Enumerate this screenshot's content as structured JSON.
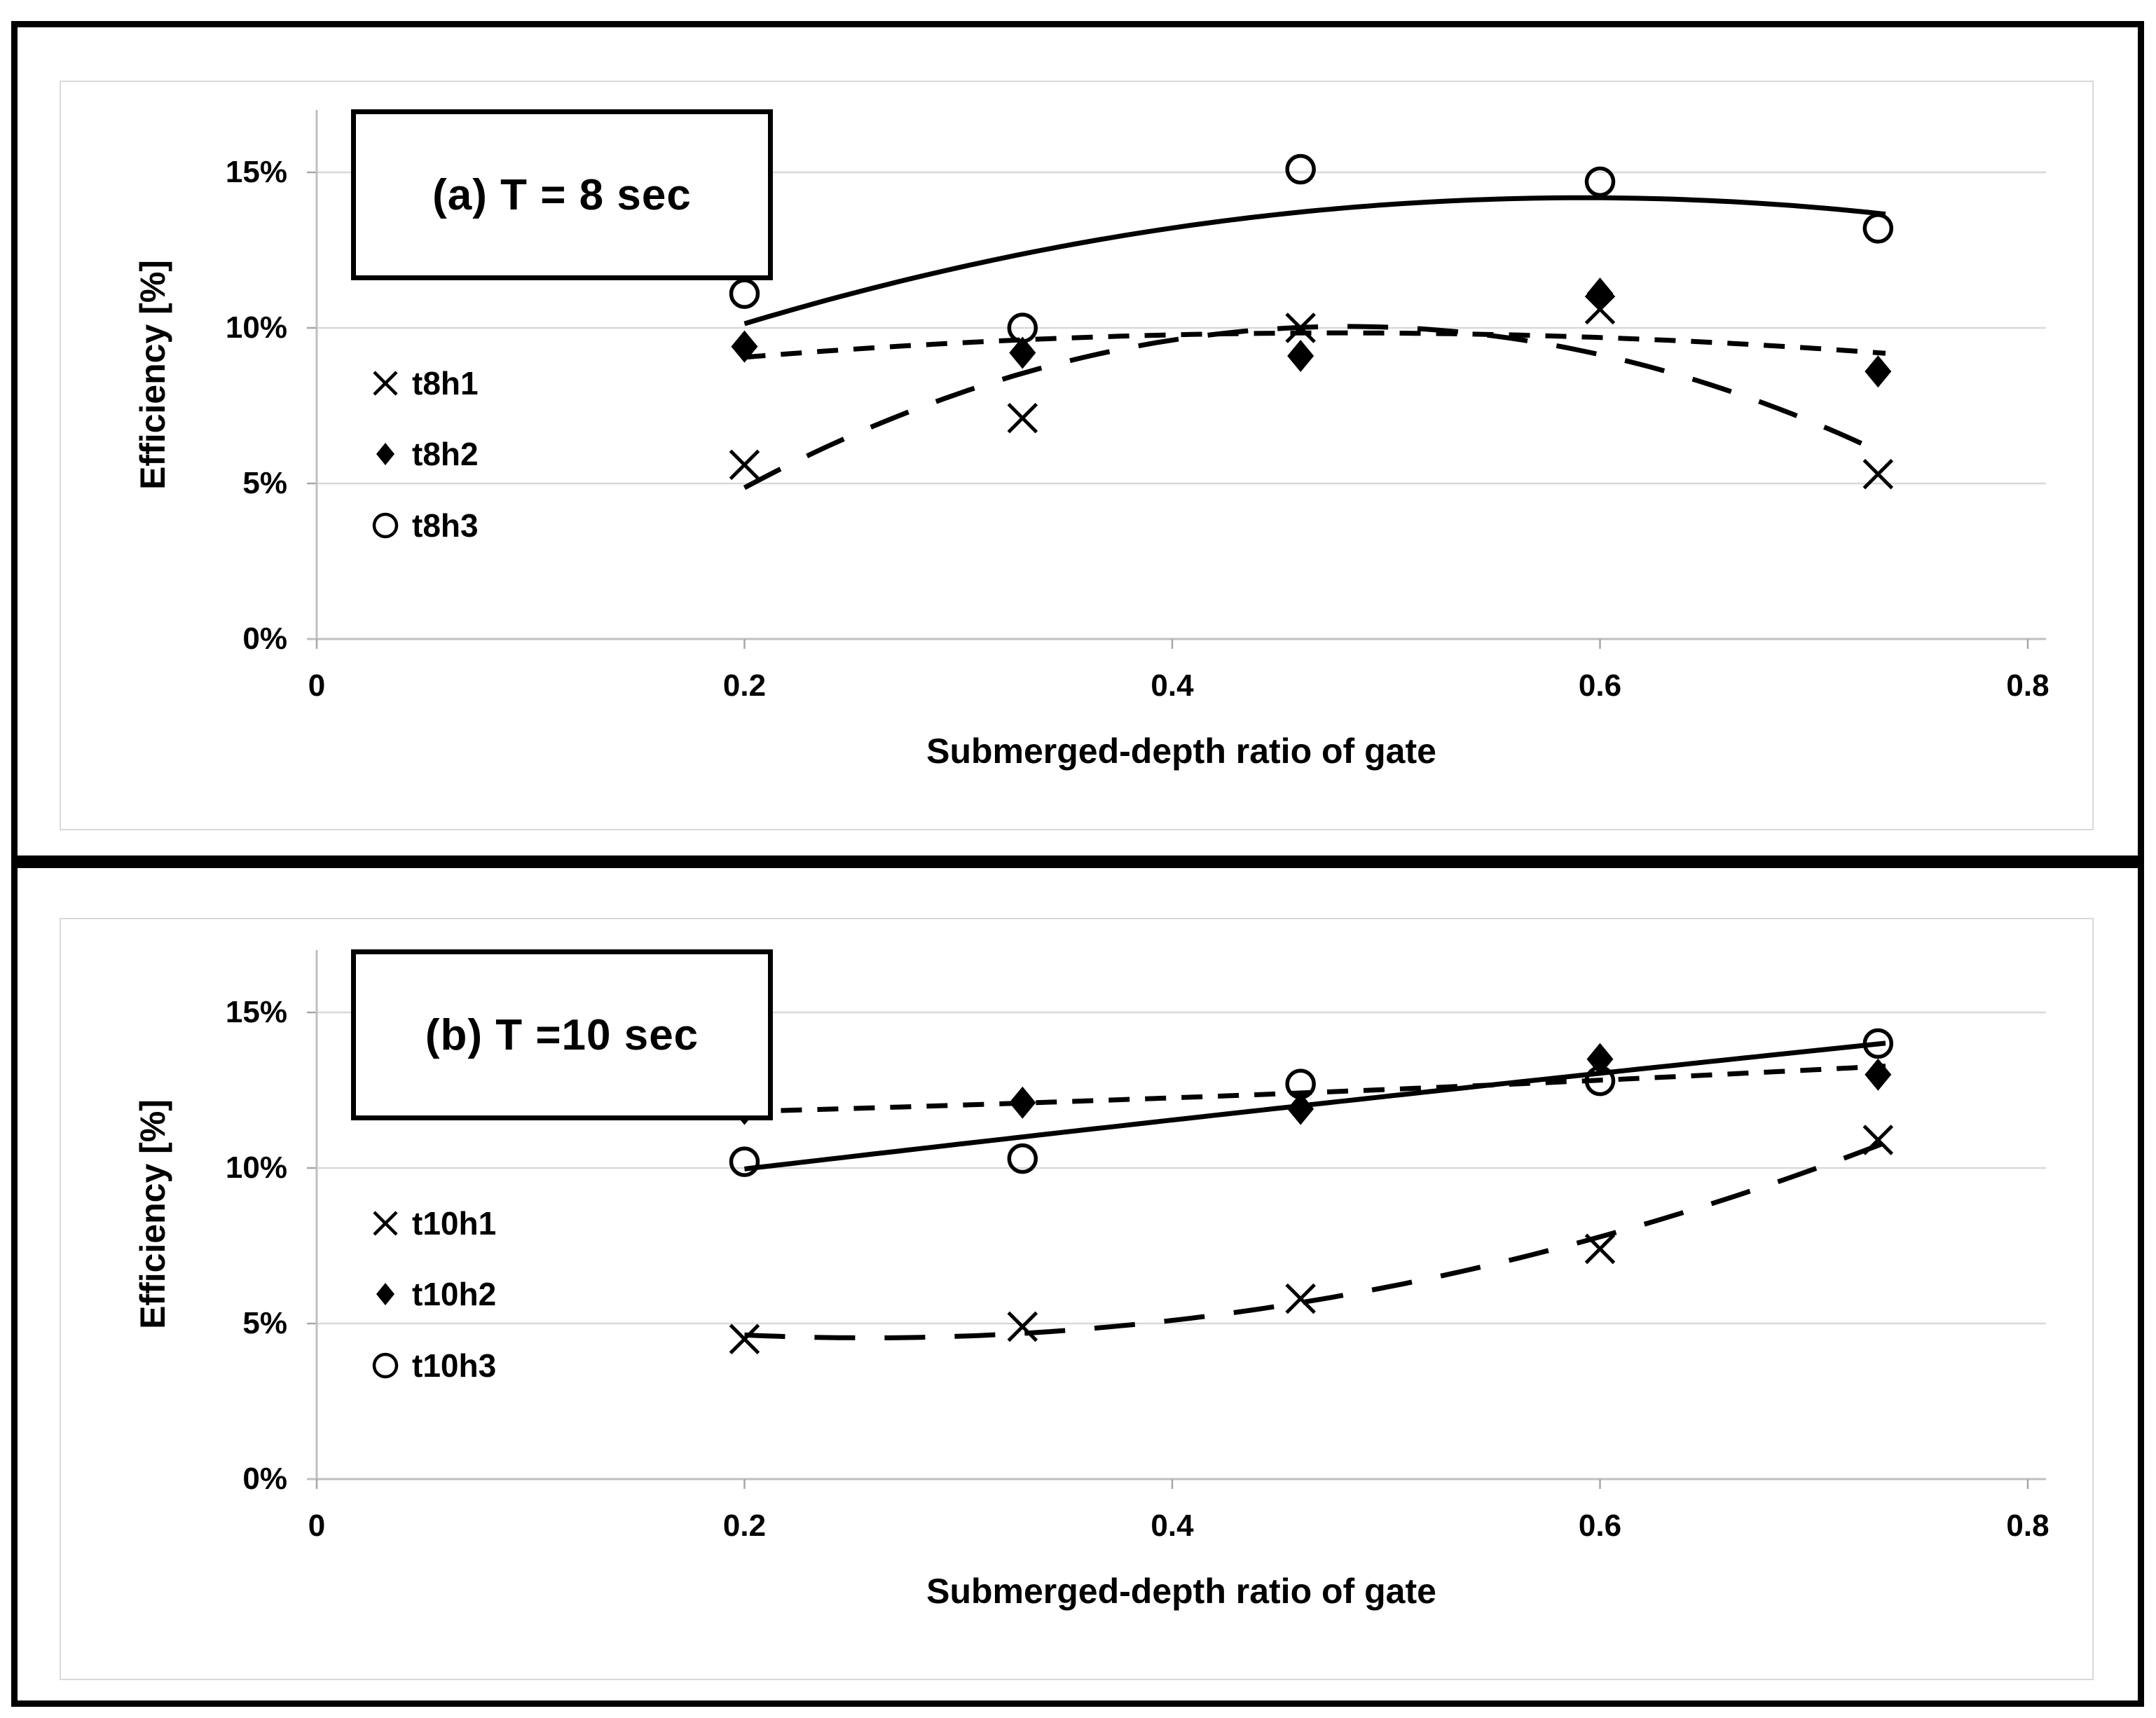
{
  "colors": {
    "ink": "#000000",
    "gridline": "#d9d9d9",
    "axis_line": "#bfbfbf",
    "tick_mark": "#a6a6a6",
    "chart_border": "#d9d9d9",
    "panel_border": "#000000",
    "background": "#ffffff"
  },
  "chart_data": [
    {
      "type": "scatter",
      "title": "(a)  T = 8 sec",
      "xlabel": "Submerged-depth ratio of gate",
      "ylabel": "Efficiency [%]",
      "x_ticks": [
        "0",
        "0.2",
        "0.4",
        "0.6",
        "0.8"
      ],
      "x_tick_values": [
        0,
        0.2,
        0.4,
        0.6,
        0.8
      ],
      "y_ticks": [
        "0%",
        "5%",
        "10%",
        "15%"
      ],
      "y_tick_values": [
        0,
        5,
        10,
        15
      ],
      "xlim": [
        0,
        0.8
      ],
      "ylim": [
        0,
        17
      ],
      "grid": true,
      "legend_position": "inside-left",
      "trend": {
        "type": "polynomial",
        "order": 2,
        "range": [
          0.2,
          0.735
        ]
      },
      "x": [
        0.2,
        0.33,
        0.46,
        0.6,
        0.73
      ],
      "series": [
        {
          "name": "t8h1",
          "marker": "x",
          "line": "long-dash",
          "values": [
            5.6,
            7.1,
            10.0,
            10.6,
            5.3
          ]
        },
        {
          "name": "t8h2",
          "marker": "diamond",
          "line": "short-dash",
          "values": [
            9.4,
            9.2,
            9.1,
            11.1,
            8.6
          ]
        },
        {
          "name": "t8h3",
          "marker": "circle",
          "line": "solid",
          "values": [
            11.1,
            10.0,
            15.1,
            14.7,
            13.2
          ]
        }
      ]
    },
    {
      "type": "scatter",
      "title": "(b) T =10 sec",
      "xlabel": "Submerged-depth ratio of gate",
      "ylabel": "Efficiency [%]",
      "x_ticks": [
        "0",
        "0.2",
        "0.4",
        "0.6",
        "0.8"
      ],
      "x_tick_values": [
        0,
        0.2,
        0.4,
        0.6,
        0.8
      ],
      "y_ticks": [
        "0%",
        "5%",
        "10%",
        "15%"
      ],
      "y_tick_values": [
        0,
        5,
        10,
        15
      ],
      "xlim": [
        0,
        0.8
      ],
      "ylim": [
        0,
        17
      ],
      "grid": true,
      "legend_position": "inside-left",
      "trend": {
        "type": "polynomial",
        "order": 2,
        "range": [
          0.2,
          0.735
        ]
      },
      "x": [
        0.2,
        0.33,
        0.46,
        0.6,
        0.73
      ],
      "series": [
        {
          "name": "t10h1",
          "marker": "x",
          "line": "long-dash",
          "values": [
            4.5,
            4.9,
            5.8,
            7.4,
            10.9
          ]
        },
        {
          "name": "t10h2",
          "marker": "diamond",
          "line": "short-dash",
          "values": [
            11.9,
            12.1,
            11.9,
            13.5,
            13.0
          ]
        },
        {
          "name": "t10h3",
          "marker": "circle",
          "line": "solid",
          "values": [
            10.2,
            10.3,
            12.7,
            12.8,
            14.0
          ]
        }
      ]
    }
  ]
}
